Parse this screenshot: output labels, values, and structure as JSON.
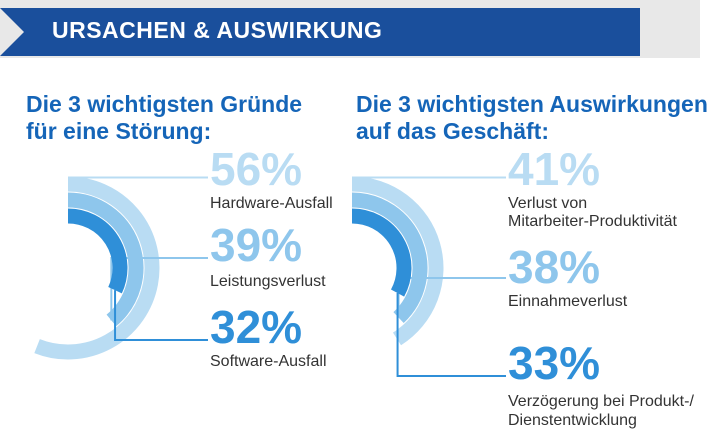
{
  "banner": {
    "title": "URSACHEN & AUSWIRKUNG"
  },
  "colors": {
    "banner": "#1a4f9c",
    "title": "#1565b8",
    "light": "#b9dcf3",
    "medium": "#8ec6ec",
    "dark": "#2f8fd8"
  },
  "chart_data": [
    {
      "type": "radial-bar",
      "title_line1": "Die 3 wichtigsten Gründe",
      "title_line2": "für eine Störung:",
      "items": [
        {
          "value": 56,
          "display": "56%",
          "label": "Hardware-Ausfall"
        },
        {
          "value": 39,
          "display": "39%",
          "label": "Leistungsverlust"
        },
        {
          "value": 32,
          "display": "32%",
          "label": "Software-Ausfall"
        }
      ]
    },
    {
      "type": "radial-bar",
      "title_line1": "Die 3 wichtigsten Auswirkungen",
      "title_line2": "auf das Geschäft:",
      "items": [
        {
          "value": 41,
          "display": "41%",
          "label_line1": "Verlust von",
          "label_line2": "Mitarbeiter-Produktivität"
        },
        {
          "value": 38,
          "display": "38%",
          "label_line1": "Einnahmeverlust",
          "label_line2": ""
        },
        {
          "value": 33,
          "display": "33%",
          "label_line1": "Verzögerung bei Produkt-/",
          "label_line2": "Dienstentwicklung"
        }
      ]
    }
  ]
}
